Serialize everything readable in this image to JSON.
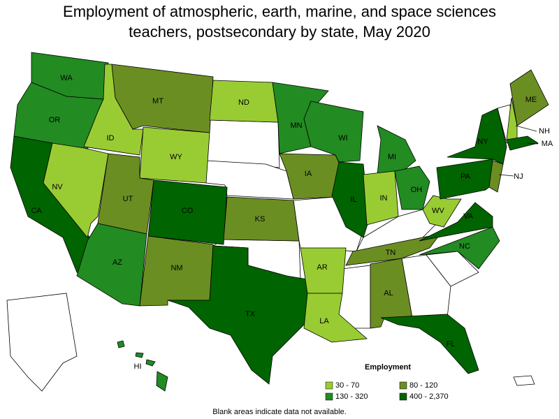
{
  "title": "Employment of atmospheric, earth, marine, and space sciences teachers, postsecondary by state, May 2020",
  "legend": {
    "title": "Employment",
    "items": [
      {
        "label": "30 - 70",
        "color": "#99cc33"
      },
      {
        "label": "80 - 120",
        "color": "#6b8e23"
      },
      {
        "label": "130 - 320",
        "color": "#228b22"
      },
      {
        "label": "400 - 2,370",
        "color": "#006400"
      }
    ]
  },
  "states": [
    {
      "label": "WA",
      "range": 2
    },
    {
      "label": "OR",
      "range": 2
    },
    {
      "label": "CA",
      "range": 3
    },
    {
      "label": "NV",
      "range": 0
    },
    {
      "label": "ID",
      "range": 0
    },
    {
      "label": "MT",
      "range": 1
    },
    {
      "label": "WY",
      "range": 0
    },
    {
      "label": "UT",
      "range": 1
    },
    {
      "label": "AZ",
      "range": 2
    },
    {
      "label": "CO",
      "range": 3
    },
    {
      "label": "NM",
      "range": 1
    },
    {
      "label": "TX",
      "range": 3
    },
    {
      "label": "ND",
      "range": 0
    },
    {
      "label": "KS",
      "range": 1
    },
    {
      "label": "MN",
      "range": 2
    },
    {
      "label": "IA",
      "range": 1
    },
    {
      "label": "WI",
      "range": 2
    },
    {
      "label": "IL",
      "range": 3
    },
    {
      "label": "MI",
      "range": 2
    },
    {
      "label": "IN",
      "range": 0
    },
    {
      "label": "OH",
      "range": 2
    },
    {
      "label": "AR",
      "range": 0
    },
    {
      "label": "LA",
      "range": 0
    },
    {
      "label": "TN",
      "range": 1
    },
    {
      "label": "AL",
      "range": 1
    },
    {
      "label": "FL",
      "range": 3
    },
    {
      "label": "NC",
      "range": 2
    },
    {
      "label": "VA",
      "range": 3
    },
    {
      "label": "WV",
      "range": 0
    },
    {
      "label": "PA",
      "range": 3
    },
    {
      "label": "NY",
      "range": 3
    },
    {
      "label": "NJ",
      "range": 1
    },
    {
      "label": "ME",
      "range": 1
    },
    {
      "label": "NH",
      "range": 0
    },
    {
      "label": "MA",
      "range": 3
    },
    {
      "label": "HI",
      "range": 2
    }
  ],
  "note": "Blank areas indicate data not available."
}
